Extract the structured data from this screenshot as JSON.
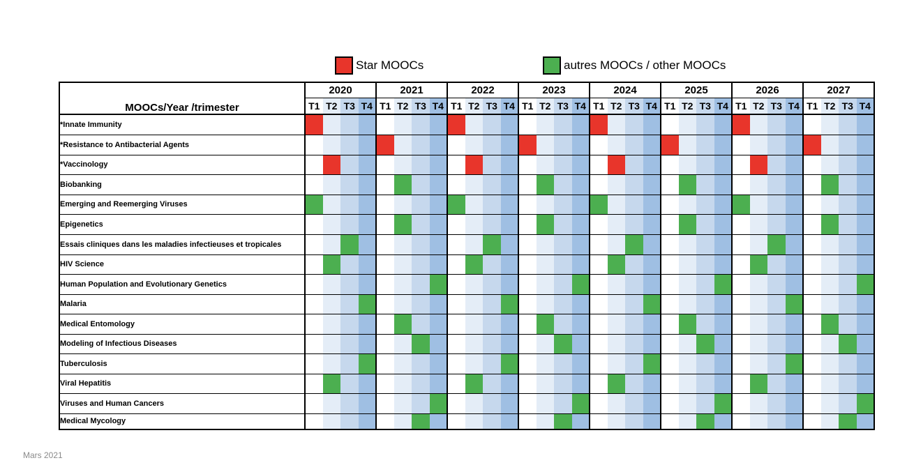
{
  "legend": {
    "star": {
      "label": "Star MOOCs",
      "color": "#e8352b"
    },
    "other": {
      "label": "autres MOOCs / other MOOCs",
      "color": "#4caf50"
    }
  },
  "header": {
    "title": "MOOCs/Year /trimester",
    "years": [
      "2020",
      "2021",
      "2022",
      "2023",
      "2024",
      "2025",
      "2026",
      "2027"
    ],
    "trimesters": [
      "T1",
      "T2",
      "T3",
      "T4"
    ]
  },
  "quarter_colors": [
    "#ffffff",
    "#e4edf7",
    "#c6d8ed",
    "#9fbfe3"
  ],
  "moocs": [
    {
      "name": "*Innate Immunity",
      "kind": "star",
      "slots": [
        [
          2020,
          1
        ],
        [
          2022,
          1
        ],
        [
          2024,
          1
        ],
        [
          2026,
          1
        ]
      ]
    },
    {
      "name": "*Resistance to Antibacterial Agents",
      "kind": "star",
      "slots": [
        [
          2021,
          1
        ],
        [
          2023,
          1
        ],
        [
          2025,
          1
        ],
        [
          2027,
          1
        ]
      ]
    },
    {
      "name": "*Vaccinology",
      "kind": "star",
      "slots": [
        [
          2020,
          2
        ],
        [
          2022,
          2
        ],
        [
          2024,
          2
        ],
        [
          2026,
          2
        ]
      ]
    },
    {
      "name": "Biobanking",
      "kind": "other",
      "slots": [
        [
          2021,
          2
        ],
        [
          2023,
          2
        ],
        [
          2025,
          2
        ],
        [
          2027,
          2
        ]
      ]
    },
    {
      "name": "Emerging and Reemerging Viruses",
      "kind": "other",
      "slots": [
        [
          2020,
          1
        ],
        [
          2022,
          1
        ],
        [
          2024,
          1
        ],
        [
          2026,
          1
        ]
      ]
    },
    {
      "name": "Epigenetics",
      "kind": "other",
      "slots": [
        [
          2021,
          2
        ],
        [
          2023,
          2
        ],
        [
          2025,
          2
        ],
        [
          2027,
          2
        ]
      ]
    },
    {
      "name": "Essais cliniques dans les maladies infectieuses et tropicales",
      "kind": "other",
      "slots": [
        [
          2020,
          3
        ],
        [
          2022,
          3
        ],
        [
          2024,
          3
        ],
        [
          2026,
          3
        ]
      ]
    },
    {
      "name": "HIV Science",
      "kind": "other",
      "slots": [
        [
          2020,
          2
        ],
        [
          2022,
          2
        ],
        [
          2024,
          2
        ],
        [
          2026,
          2
        ]
      ]
    },
    {
      "name": "Human Population and Evolutionary Genetics",
      "kind": "other",
      "slots": [
        [
          2021,
          4
        ],
        [
          2023,
          4
        ],
        [
          2025,
          4
        ],
        [
          2027,
          4
        ]
      ]
    },
    {
      "name": "Malaria",
      "kind": "other",
      "slots": [
        [
          2020,
          4
        ],
        [
          2022,
          4
        ],
        [
          2024,
          4
        ],
        [
          2026,
          4
        ]
      ]
    },
    {
      "name": "Medical Entomology",
      "kind": "other",
      "slots": [
        [
          2021,
          2
        ],
        [
          2023,
          2
        ],
        [
          2025,
          2
        ],
        [
          2027,
          2
        ]
      ]
    },
    {
      "name": "Modeling of Infectious Diseases",
      "kind": "other",
      "slots": [
        [
          2021,
          3
        ],
        [
          2023,
          3
        ],
        [
          2025,
          3
        ],
        [
          2027,
          3
        ]
      ]
    },
    {
      "name": "Tuberculosis",
      "kind": "other",
      "slots": [
        [
          2020,
          4
        ],
        [
          2022,
          4
        ],
        [
          2024,
          4
        ],
        [
          2026,
          4
        ]
      ]
    },
    {
      "name": "Viral Hepatitis",
      "kind": "other",
      "slots": [
        [
          2020,
          2
        ],
        [
          2022,
          2
        ],
        [
          2024,
          2
        ],
        [
          2026,
          2
        ]
      ]
    },
    {
      "name": "Viruses and Human Cancers",
      "kind": "other",
      "slots": [
        [
          2021,
          4
        ],
        [
          2023,
          4
        ],
        [
          2025,
          4
        ],
        [
          2027,
          4
        ]
      ]
    },
    {
      "name": "Medical Mycology",
      "kind": "other",
      "slots": [
        [
          2021,
          3
        ],
        [
          2023,
          3
        ],
        [
          2025,
          3
        ],
        [
          2027,
          3
        ]
      ]
    }
  ],
  "footer": {
    "date": "Mars 2021"
  }
}
